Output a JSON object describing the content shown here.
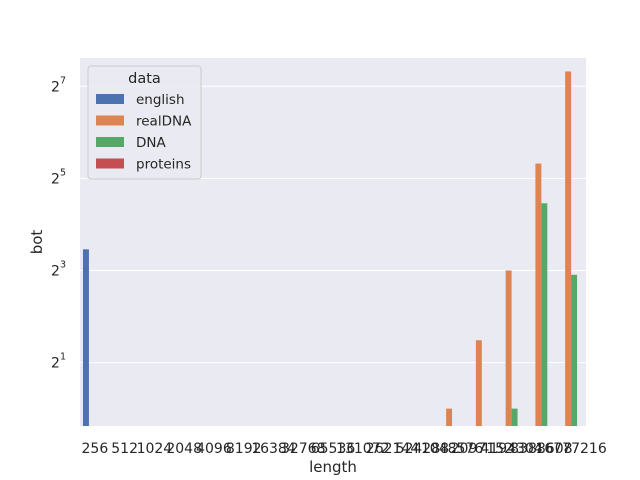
{
  "chart_data": {
    "type": "bar",
    "xlabel": "length",
    "ylabel": "bot",
    "yscale": "log2",
    "ylim": [
      0.77,
      196
    ],
    "yticks": [
      {
        "value": 2,
        "base": "2",
        "exp": "1"
      },
      {
        "value": 8,
        "base": "2",
        "exp": "3"
      },
      {
        "value": 32,
        "base": "2",
        "exp": "5"
      },
      {
        "value": 128,
        "base": "2",
        "exp": "7"
      }
    ],
    "grid": true,
    "legend": {
      "title": "data",
      "placement": "top-left"
    },
    "categories": [
      "256",
      "512",
      "1024",
      "2048",
      "4096",
      "8192",
      "16384",
      "32768",
      "65536",
      "131072",
      "262144",
      "524288",
      "1048576",
      "2097152",
      "4194304",
      "8388608",
      "16777216"
    ],
    "series": [
      {
        "name": "english",
        "color": "#4c72b0",
        "values": [
          11,
          null,
          null,
          null,
          null,
          null,
          null,
          null,
          null,
          null,
          null,
          null,
          null,
          null,
          null,
          null,
          null
        ]
      },
      {
        "name": "realDNA",
        "color": "#dd8452",
        "values": [
          null,
          null,
          null,
          null,
          null,
          null,
          null,
          null,
          null,
          null,
          null,
          null,
          1.0,
          2.8,
          8.0,
          40,
          160
        ]
      },
      {
        "name": "DNA",
        "color": "#55a868",
        "values": [
          null,
          null,
          null,
          null,
          null,
          null,
          null,
          null,
          null,
          null,
          null,
          null,
          null,
          null,
          1.0,
          22,
          7.5
        ]
      },
      {
        "name": "proteins",
        "color": "#c44e52",
        "values": [
          null,
          null,
          null,
          null,
          null,
          null,
          null,
          null,
          null,
          null,
          null,
          null,
          null,
          null,
          null,
          null,
          null
        ]
      }
    ]
  }
}
